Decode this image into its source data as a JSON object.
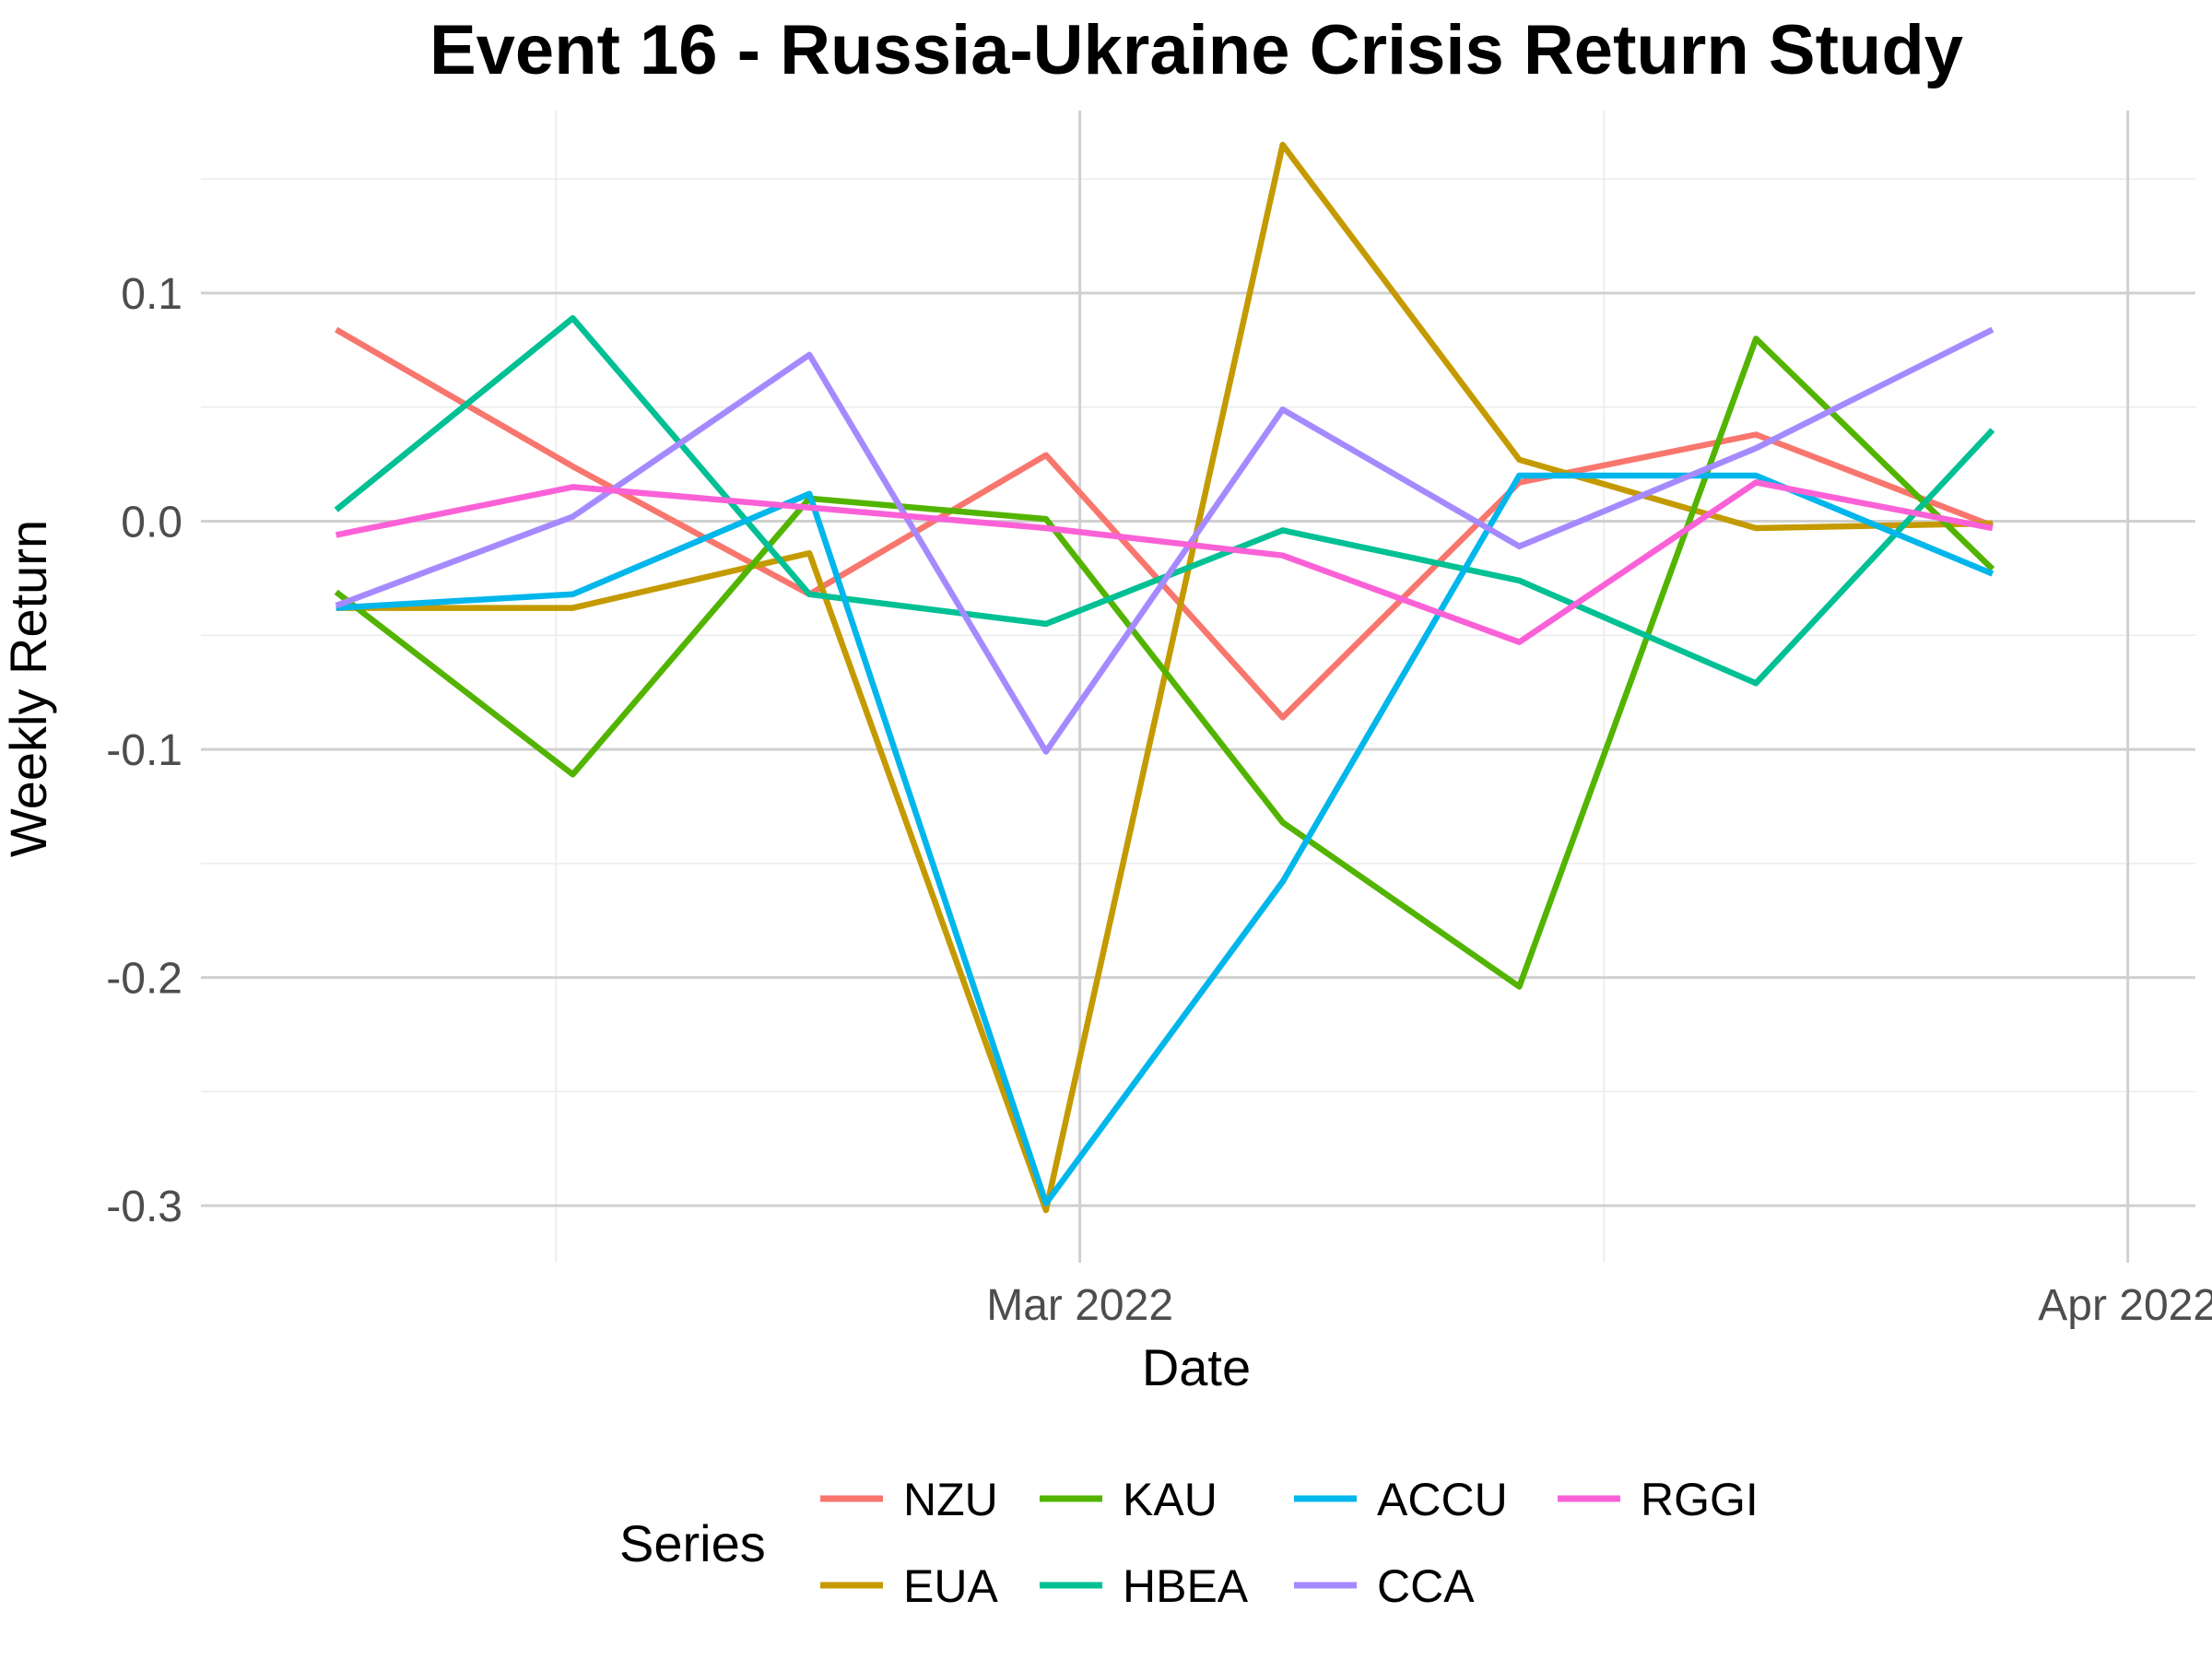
{
  "chart_data": {
    "type": "line",
    "title": "Event 16 - Russia-Ukraine Crisis Return Study",
    "xlabel": "Date",
    "ylabel": "Weekly Return",
    "x": [
      "2022-02-07",
      "2022-02-14",
      "2022-02-21",
      "2022-02-28",
      "2022-03-07",
      "2022-03-14",
      "2022-03-21",
      "2022-03-28"
    ],
    "x_tick_labels": [
      {
        "date": "2022-03-01",
        "label": "Mar 2022"
      },
      {
        "date": "2022-04-01",
        "label": "Apr 2022"
      }
    ],
    "y_ticks": [
      0.1,
      0.0,
      -0.1,
      -0.2,
      -0.3
    ],
    "y_tick_labels": [
      "0.1",
      "0.0",
      "-0.1",
      "-0.2",
      "-0.3"
    ],
    "ylim": [
      -0.325,
      0.18
    ],
    "xlim": [
      "2022-02-03",
      "2022-04-03"
    ],
    "grid": true,
    "legend_position": "bottom",
    "legend_title": "Series",
    "series": [
      {
        "name": "NZU",
        "color": "#F8766D",
        "values": [
          0.084,
          0.024,
          -0.032,
          0.029,
          -0.086,
          0.017,
          0.038,
          -0.002
        ]
      },
      {
        "name": "EUA",
        "color": "#C49A00",
        "values": [
          -0.038,
          -0.038,
          -0.014,
          -0.302,
          0.165,
          0.027,
          -0.003,
          -0.001
        ]
      },
      {
        "name": "KAU",
        "color": "#53B400",
        "values": [
          -0.031,
          -0.111,
          0.01,
          0.001,
          -0.132,
          -0.204,
          0.08,
          -0.021
        ]
      },
      {
        "name": "HBEA",
        "color": "#00C094",
        "values": [
          0.005,
          0.089,
          -0.032,
          -0.045,
          -0.004,
          -0.026,
          -0.071,
          0.04
        ]
      },
      {
        "name": "ACCU",
        "color": "#00B6EB",
        "values": [
          -0.038,
          -0.032,
          0.012,
          -0.299,
          -0.158,
          0.02,
          0.02,
          -0.023
        ]
      },
      {
        "name": "CCA",
        "color": "#A58AFF",
        "values": [
          -0.037,
          0.002,
          0.073,
          -0.101,
          0.049,
          -0.011,
          0.032,
          0.084
        ]
      },
      {
        "name": "RGGI",
        "color": "#FB61D7",
        "values": [
          -0.006,
          0.015,
          0.006,
          -0.003,
          -0.015,
          -0.053,
          0.017,
          -0.003
        ]
      }
    ]
  }
}
